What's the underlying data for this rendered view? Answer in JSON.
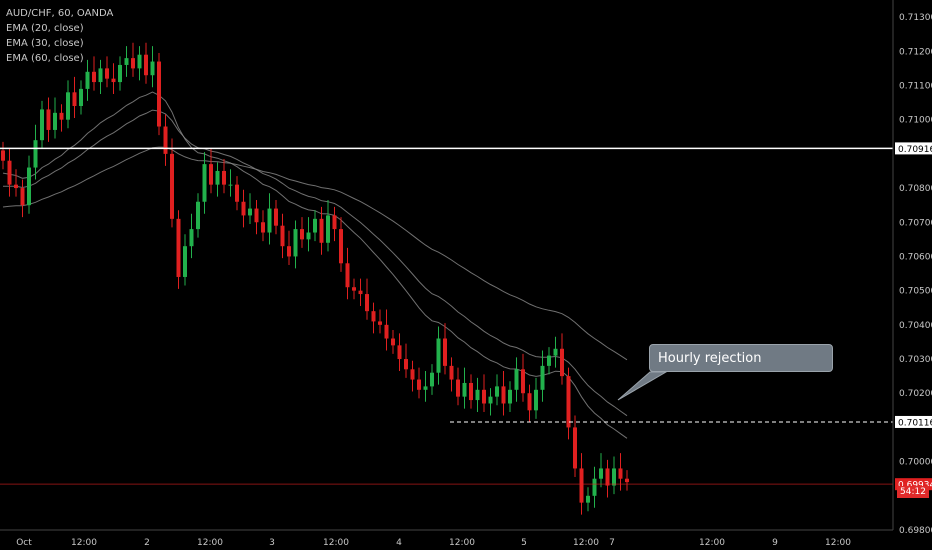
{
  "header": {
    "symbol": "AUD/CHF, 60, OANDA"
  },
  "legend": [
    "EMA (20, close)",
    "EMA (30, close)",
    "EMA (60, close)"
  ],
  "annotation": "Hourly rejection",
  "countdown": "54:12",
  "colors": {
    "up": "#22b14c",
    "down": "#e02020",
    "ema": "#8c8c8c",
    "support": "#ffffff",
    "price": "#e02020",
    "callout": "#707a84"
  },
  "chart_data": {
    "type": "candlestick",
    "ylim": [
      0.698,
      0.7135
    ],
    "y_ticks": [
      "0.71300",
      "0.71200",
      "0.71100",
      "0.71000",
      "0.70800",
      "0.70700",
      "0.70600",
      "0.70500",
      "0.70400",
      "0.70300",
      "0.70200",
      "0.70000",
      "0.69800"
    ],
    "x_ticks": [
      "Oct",
      "12:00",
      "2",
      "12:00",
      "3",
      "12:00",
      "4",
      "12:00",
      "5",
      "12:00",
      "7",
      "12:00",
      "9",
      "12:00"
    ],
    "levels": [
      {
        "name": "support",
        "price": 0.70916,
        "label": "0.70916",
        "style": "solid"
      },
      {
        "name": "rejection",
        "price": 0.70116,
        "label": "0.70116",
        "style": "dashed"
      },
      {
        "name": "last",
        "price": 0.69934,
        "label": "0.69934",
        "style": "solid"
      }
    ],
    "closes": [
      0.7088,
      0.7081,
      0.708,
      0.7075,
      0.7086,
      0.7094,
      0.7103,
      0.7097,
      0.7102,
      0.71,
      0.7108,
      0.7104,
      0.7109,
      0.7114,
      0.7111,
      0.7115,
      0.7112,
      0.7111,
      0.7116,
      0.7118,
      0.7115,
      0.7119,
      0.7113,
      0.7117,
      0.7098,
      0.709,
      0.7071,
      0.7054,
      0.7063,
      0.7068,
      0.7076,
      0.7087,
      0.7081,
      0.7085,
      0.7081,
      0.7081,
      0.7076,
      0.7072,
      0.7074,
      0.707,
      0.7067,
      0.7074,
      0.7069,
      0.7063,
      0.706,
      0.7068,
      0.7065,
      0.7067,
      0.7071,
      0.7064,
      0.7072,
      0.7068,
      0.7058,
      0.7051,
      0.705,
      0.7049,
      0.7044,
      0.7041,
      0.704,
      0.7036,
      0.7034,
      0.703,
      0.7027,
      0.7024,
      0.7021,
      0.7022,
      0.7026,
      0.7036,
      0.7028,
      0.7024,
      0.7019,
      0.7023,
      0.7018,
      0.7021,
      0.7017,
      0.7019,
      0.7022,
      0.7017,
      0.7021,
      0.7027,
      0.702,
      0.7015,
      0.7021,
      0.7028,
      0.7031,
      0.7033,
      0.7025,
      0.701,
      0.6998,
      0.6988,
      0.699,
      0.6995,
      0.6998,
      0.6993,
      0.6998,
      0.6995,
      0.6994
    ]
  }
}
